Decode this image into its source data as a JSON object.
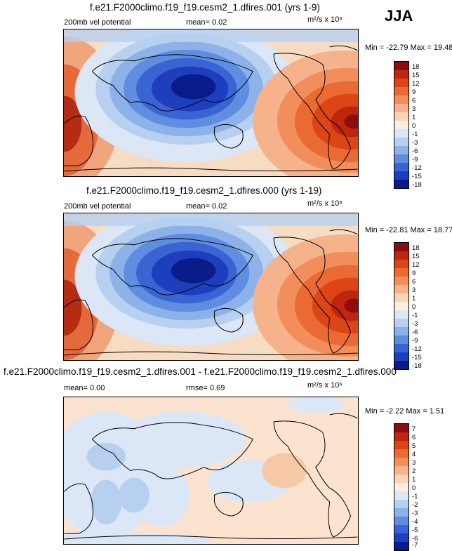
{
  "header": {
    "season": "JJA"
  },
  "panels": [
    {
      "id": "top",
      "title": "f.e21.F2000climo.f19_f19.cesm2_1.dfires.001 (yrs 1-9)",
      "variable": "200mb vel potential",
      "stat1": "mean=   0.02",
      "stat2": "",
      "units": "m²/s x 10⁶",
      "minmax": "Min = -22.79 Max =  19.48",
      "levels": [
        "18",
        "15",
        "12",
        "9",
        "6",
        "3",
        "1",
        "0",
        "-1",
        "-3",
        "-6",
        "-9",
        "-12",
        "-15",
        "-18"
      ],
      "colors": [
        "#8c0d0d",
        "#c0260e",
        "#dc4516",
        "#ea6a33",
        "#f28e5c",
        "#f6b28a",
        "#f9d5b8",
        "#fbeee0",
        "#dbe7f6",
        "#b7d0f0",
        "#8db2ea",
        "#5f8de0",
        "#3a64d3",
        "#1e3fbd",
        "#0a1c8a"
      ]
    },
    {
      "id": "middle",
      "title": "f.e21.F2000climo.f19_f19.cesm2_1.dfires.000 (yrs 1-19)",
      "variable": "200mb vel potential",
      "stat1": "mean=   0.02",
      "stat2": "",
      "units": "m²/s x 10⁶",
      "minmax": "Min = -22.81 Max =  18.77",
      "levels": [
        "18",
        "15",
        "12",
        "9",
        "6",
        "3",
        "1",
        "0",
        "-1",
        "-3",
        "-6",
        "-9",
        "-12",
        "-15",
        "-18"
      ],
      "colors": [
        "#8c0d0d",
        "#c0260e",
        "#dc4516",
        "#ea6a33",
        "#f28e5c",
        "#f6b28a",
        "#f9d5b8",
        "#fbeee0",
        "#dbe7f6",
        "#b7d0f0",
        "#8db2ea",
        "#5f8de0",
        "#3a64d3",
        "#1e3fbd",
        "#0a1c8a"
      ]
    },
    {
      "id": "bottom",
      "title": "f.e21.F2000climo.f19_f19.cesm2_1.dfires.001 - f.e21.F2000climo.f19_f19.cesm2_1.dfires.000",
      "variable": "",
      "stat1": "mean=   0.00",
      "stat2": "rmse=   0.69",
      "units": "m²/s x 10⁶",
      "minmax": "Min =  -2.22 Max =   1.51",
      "levels": [
        "7",
        "6",
        "5",
        "4",
        "3",
        "2",
        "1",
        "0",
        "-1",
        "-2",
        "-3",
        "-4",
        "-5",
        "-6",
        "-7"
      ],
      "colors": [
        "#8c0d0d",
        "#c0260e",
        "#dc4516",
        "#ea6a33",
        "#f28e5c",
        "#f6b28a",
        "#f9d5b8",
        "#fbeee0",
        "#dbe7f6",
        "#b7d0f0",
        "#8db2ea",
        "#5f8de0",
        "#3a64d3",
        "#1e3fbd",
        "#0a1c8a"
      ]
    }
  ]
}
